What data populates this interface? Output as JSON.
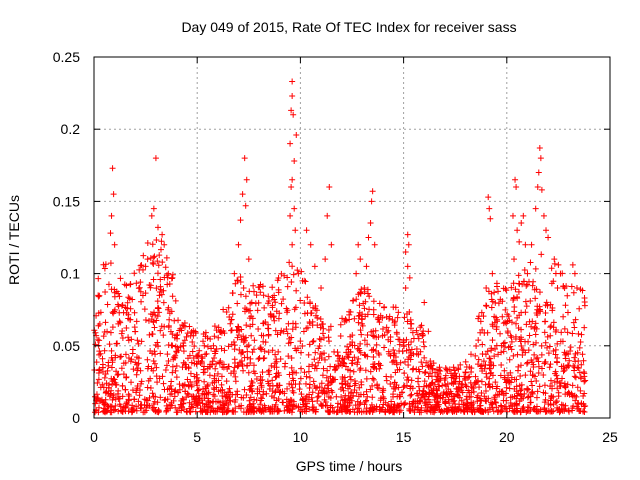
{
  "chart_data": {
    "type": "scatter",
    "title": "Day 049 of 2015, Rate Of TEC Index for receiver sass",
    "xlabel": "GPS time / hours",
    "ylabel": "ROTI / TECUs",
    "xlim": [
      0,
      25
    ],
    "ylim": [
      0,
      0.25
    ],
    "xticks": [
      0,
      5,
      10,
      15,
      20,
      25
    ],
    "yticks": [
      0,
      0.05,
      0.1,
      0.15,
      0.2,
      0.25
    ],
    "xtick_labels": [
      "0",
      "5",
      "10",
      "15",
      "20",
      "25"
    ],
    "ytick_labels": [
      "0",
      "0.05",
      "0.1",
      "0.15",
      "0.2",
      "0.25"
    ],
    "grid": true,
    "marker": "+",
    "color": "#ff0000",
    "series": [
      {
        "name": "ROTI",
        "points": [
          [
            0.9,
            0.173
          ],
          [
            0.95,
            0.155
          ],
          [
            0.85,
            0.14
          ],
          [
            0.8,
            0.128
          ],
          [
            1.0,
            0.12
          ],
          [
            3.0,
            0.18
          ],
          [
            2.9,
            0.145
          ],
          [
            2.8,
            0.14
          ],
          [
            3.1,
            0.132
          ],
          [
            3.3,
            0.127
          ],
          [
            3.4,
            0.12
          ],
          [
            2.6,
            0.11
          ],
          [
            2.5,
            0.105
          ],
          [
            3.6,
            0.1
          ],
          [
            3.8,
            0.097
          ],
          [
            7.3,
            0.18
          ],
          [
            7.4,
            0.165
          ],
          [
            7.2,
            0.155
          ],
          [
            7.35,
            0.147
          ],
          [
            7.1,
            0.137
          ],
          [
            7.0,
            0.12
          ],
          [
            7.5,
            0.11
          ],
          [
            6.8,
            0.1
          ],
          [
            7.25,
            0.09
          ],
          [
            9.6,
            0.233
          ],
          [
            9.6,
            0.223
          ],
          [
            9.55,
            0.213
          ],
          [
            9.65,
            0.21
          ],
          [
            9.8,
            0.196
          ],
          [
            9.5,
            0.19
          ],
          [
            9.7,
            0.178
          ],
          [
            9.6,
            0.165
          ],
          [
            9.55,
            0.16
          ],
          [
            9.7,
            0.145
          ],
          [
            9.5,
            0.14
          ],
          [
            9.75,
            0.13
          ],
          [
            9.6,
            0.12
          ],
          [
            10.3,
            0.13
          ],
          [
            10.5,
            0.12
          ],
          [
            10.7,
            0.105
          ],
          [
            9.9,
            0.1
          ],
          [
            10.1,
            0.095
          ],
          [
            11.4,
            0.16
          ],
          [
            11.3,
            0.14
          ],
          [
            11.5,
            0.12
          ],
          [
            11.2,
            0.11
          ],
          [
            11.0,
            0.09
          ],
          [
            13.5,
            0.157
          ],
          [
            13.45,
            0.15
          ],
          [
            13.4,
            0.135
          ],
          [
            13.3,
            0.125
          ],
          [
            13.6,
            0.12
          ],
          [
            12.8,
            0.12
          ],
          [
            12.9,
            0.11
          ],
          [
            13.2,
            0.105
          ],
          [
            12.7,
            0.1
          ],
          [
            13.1,
            0.09
          ],
          [
            15.2,
            0.127
          ],
          [
            15.25,
            0.12
          ],
          [
            15.1,
            0.115
          ],
          [
            15.2,
            0.105
          ],
          [
            15.3,
            0.097
          ],
          [
            15.1,
            0.09
          ],
          [
            16.0,
            0.08
          ],
          [
            16.2,
            0.06
          ],
          [
            19.1,
            0.153
          ],
          [
            19.15,
            0.145
          ],
          [
            19.2,
            0.138
          ],
          [
            19.3,
            0.1
          ],
          [
            19.0,
            0.09
          ],
          [
            20.4,
            0.165
          ],
          [
            20.45,
            0.16
          ],
          [
            20.3,
            0.14
          ],
          [
            20.5,
            0.13
          ],
          [
            20.6,
            0.122
          ],
          [
            20.7,
            0.135
          ],
          [
            20.8,
            0.14
          ],
          [
            20.9,
            0.12
          ],
          [
            20.35,
            0.11
          ],
          [
            21.0,
            0.1
          ],
          [
            21.6,
            0.187
          ],
          [
            21.65,
            0.18
          ],
          [
            21.55,
            0.17
          ],
          [
            21.7,
            0.158
          ],
          [
            21.5,
            0.16
          ],
          [
            21.4,
            0.145
          ],
          [
            21.8,
            0.14
          ],
          [
            21.9,
            0.13
          ],
          [
            22.0,
            0.125
          ],
          [
            21.2,
            0.12
          ],
          [
            22.3,
            0.11
          ],
          [
            22.5,
            0.106
          ],
          [
            22.6,
            0.1
          ],
          [
            23.2,
            0.106
          ],
          [
            23.3,
            0.1
          ],
          [
            23.4,
            0.09
          ],
          [
            22.8,
            0.09
          ]
        ]
      }
    ]
  }
}
